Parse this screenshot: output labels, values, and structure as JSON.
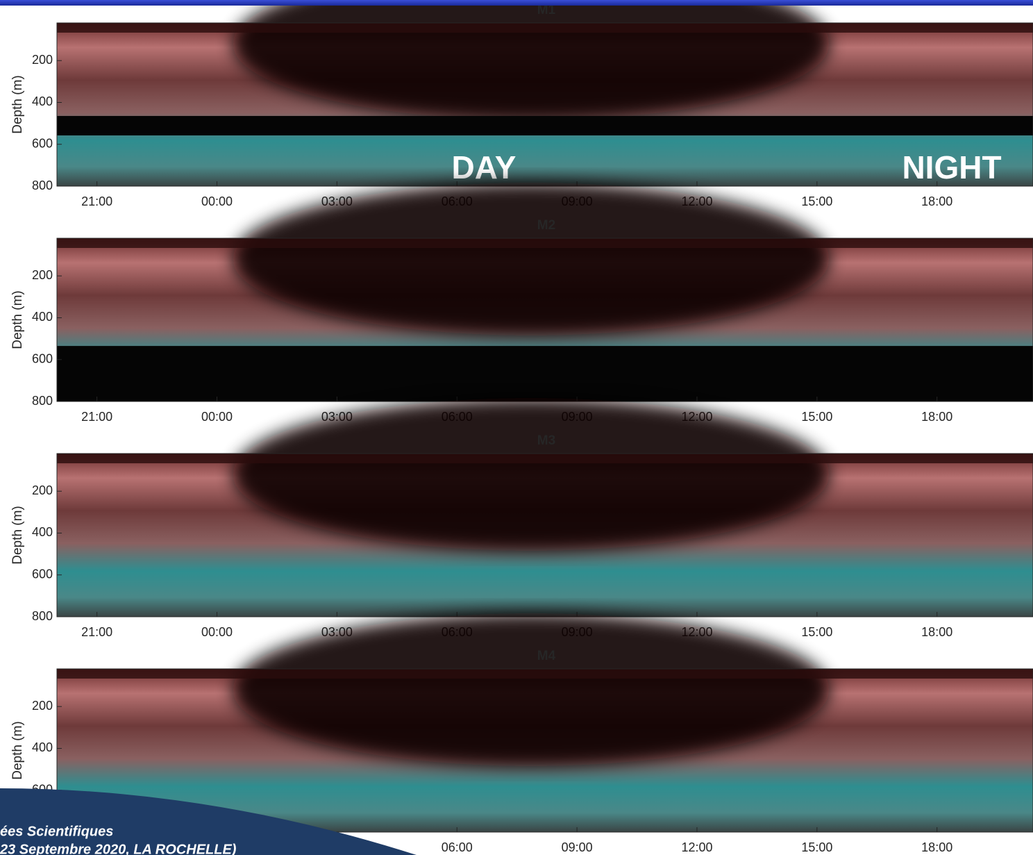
{
  "chart_data": [
    {
      "type": "echogram",
      "title": "M1",
      "ylabel": "Depth (m)",
      "ylim": [
        20,
        800
      ],
      "yticks": [
        200,
        400,
        600,
        800
      ],
      "xlim": [
        20,
        44.4
      ],
      "xticks": [
        {
          "value": 21,
          "label": "21:00"
        },
        {
          "value": 24,
          "label": "00:00"
        },
        {
          "value": 27,
          "label": "03:00"
        },
        {
          "value": 30,
          "label": "06:00"
        },
        {
          "value": 33,
          "label": "09:00"
        },
        {
          "value": 36,
          "label": "12:00"
        },
        {
          "value": 39,
          "label": "15:00"
        },
        {
          "value": 42,
          "label": "18:00"
        }
      ],
      "annotations": [
        "DAY",
        "NIGHT"
      ]
    },
    {
      "type": "echogram",
      "title": "M2",
      "ylabel": "Depth (m)",
      "ylim": [
        20,
        800
      ],
      "yticks": [
        200,
        400,
        600,
        800
      ],
      "xlim": [
        20,
        44.4
      ],
      "xticks": [
        {
          "value": 21,
          "label": "21:00"
        },
        {
          "value": 24,
          "label": "00:00"
        },
        {
          "value": 27,
          "label": "03:00"
        },
        {
          "value": 30,
          "label": "06:00"
        },
        {
          "value": 33,
          "label": "09:00"
        },
        {
          "value": 36,
          "label": "12:00"
        },
        {
          "value": 39,
          "label": "15:00"
        },
        {
          "value": 42,
          "label": "18:00"
        }
      ]
    },
    {
      "type": "echogram",
      "title": "M3",
      "ylabel": "Depth (m)",
      "ylim": [
        20,
        800
      ],
      "yticks": [
        200,
        400,
        600,
        800
      ],
      "xlim": [
        20,
        44.4
      ],
      "xticks": [
        {
          "value": 21,
          "label": "21:00"
        },
        {
          "value": 24,
          "label": "00:00"
        },
        {
          "value": 27,
          "label": "03:00"
        },
        {
          "value": 30,
          "label": "06:00"
        },
        {
          "value": 33,
          "label": "09:00"
        },
        {
          "value": 36,
          "label": "12:00"
        },
        {
          "value": 39,
          "label": "15:00"
        },
        {
          "value": 42,
          "label": "18:00"
        }
      ]
    },
    {
      "type": "echogram",
      "title": "M4",
      "ylabel": "Depth (m)",
      "ylim": [
        20,
        800
      ],
      "yticks": [
        200,
        400,
        600
      ],
      "xlim": [
        20,
        44.4
      ],
      "xticks": [
        {
          "value": 30,
          "label": "06:00"
        },
        {
          "value": 33,
          "label": "09:00"
        },
        {
          "value": 36,
          "label": "12:00"
        },
        {
          "value": 39,
          "label": "15:00"
        },
        {
          "value": 42,
          "label": "18:00"
        }
      ]
    }
  ],
  "footer": {
    "lines": [
      "ées Scientifiques",
      "23 Septembre 2020, LA ROCHELLE)"
    ]
  }
}
